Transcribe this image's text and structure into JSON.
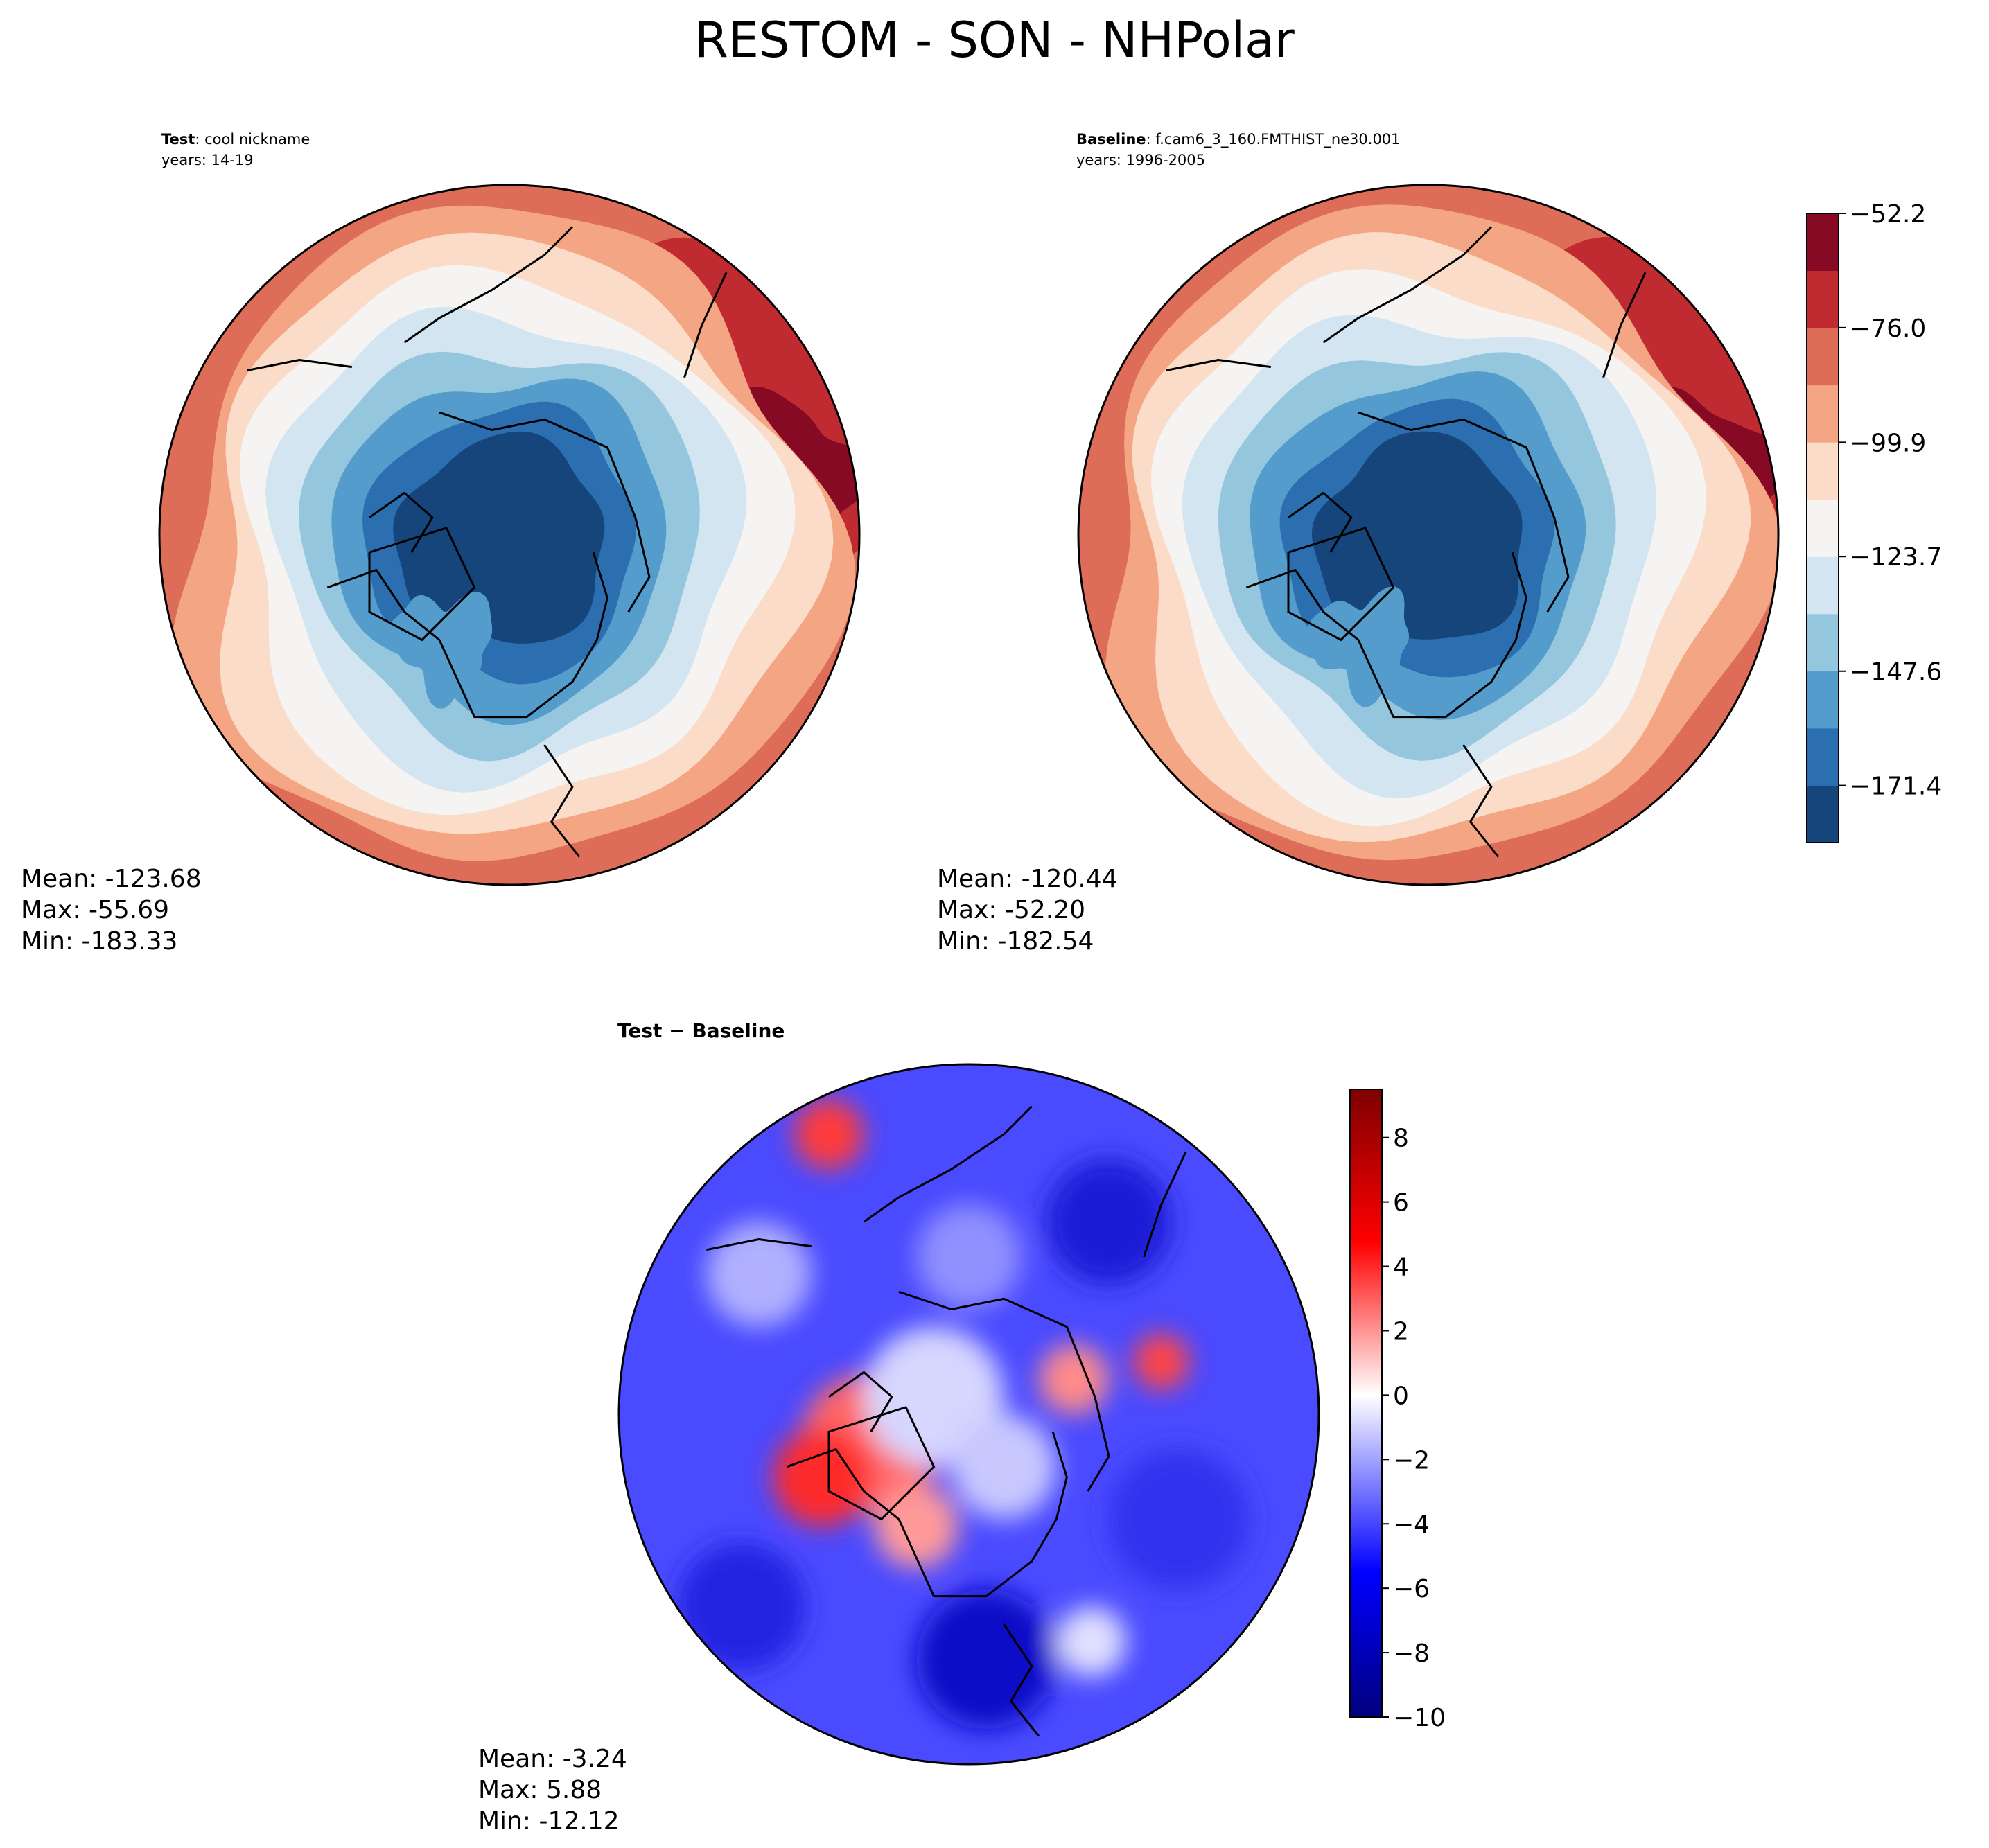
{
  "figure_title": "RESTOM - SON - NHPolar",
  "colors": {
    "reference_levels": [
      "#15457a",
      "#2b6fb0",
      "#539ccb",
      "#94c6de",
      "#d3e5f0",
      "#f5f4f3",
      "#fbdcc9",
      "#f4a684",
      "#dd6d58",
      "#bf2b31",
      "#860a24"
    ],
    "diff_cmap": [
      "#00007f",
      "#0000ff",
      "#ffffff",
      "#ff0000",
      "#7f0000"
    ]
  },
  "panels": {
    "test": {
      "label_bold": "Test",
      "label_name": ": cool nickname",
      "years": "years: 14-19",
      "stats": {
        "mean": "Mean: -123.68",
        "max": "Max: -55.69",
        "min": "Min: -183.33"
      }
    },
    "baseline": {
      "label_bold": "Baseline",
      "label_name": ": f.cam6_3_160.FMTHIST_ne30.001",
      "years": "years: 1996-2005",
      "stats": {
        "mean": "Mean: -120.44",
        "max": "Max: -52.20",
        "min": "Min: -182.54"
      }
    },
    "diff": {
      "title": "Test − Baseline",
      "stats": {
        "mean": "Mean: -3.24",
        "max": "Max:  5.88",
        "min": "Min: -12.12"
      }
    }
  },
  "chart_data": [
    {
      "type": "heatmap",
      "name": "test",
      "projection": "north-polar-stereographic",
      "summary": {
        "mean": -123.68,
        "max": -55.69,
        "min": -183.33
      }
    },
    {
      "type": "heatmap",
      "name": "baseline",
      "projection": "north-polar-stereographic",
      "summary": {
        "mean": -120.44,
        "max": -52.2,
        "min": -182.54
      }
    },
    {
      "type": "heatmap",
      "name": "test-minus-baseline",
      "projection": "north-polar-stereographic",
      "summary": {
        "mean": -3.24,
        "max": 5.88,
        "min": -12.12
      }
    },
    {
      "type": "colorbar",
      "name": "reference-colorbar",
      "range": [
        -183.3,
        -52.2
      ],
      "ticks": [
        -52.2,
        -76.0,
        -99.9,
        -123.7,
        -147.6,
        -171.4
      ],
      "tick_labels": [
        "−52.2",
        "−76.0",
        "−99.9",
        "−123.7",
        "−147.6",
        "−171.4"
      ]
    },
    {
      "type": "colorbar",
      "name": "diff-colorbar",
      "range": [
        -10,
        9.5
      ],
      "ticks": [
        -10,
        -8,
        -6,
        -4,
        -2,
        0,
        2,
        4,
        6,
        8
      ],
      "tick_labels": [
        "−10",
        "−8",
        "−6",
        "−4",
        "−2",
        "0",
        "2",
        "4",
        "6",
        "8"
      ]
    }
  ]
}
